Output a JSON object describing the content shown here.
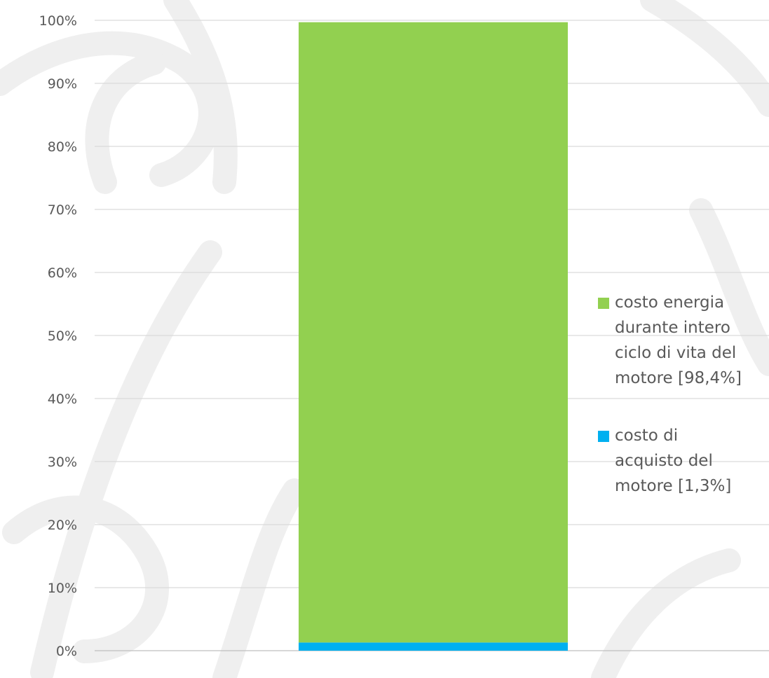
{
  "chart_data": {
    "type": "bar",
    "stacked": true,
    "percent_scale": true,
    "categories": [
      ""
    ],
    "series": [
      {
        "name": "costo di acquisto del motore [1,3%]",
        "values": [
          1.3
        ],
        "color": "#00B0F0"
      },
      {
        "name": "costo energia durante intero ciclo di vita del motore [98,4%]",
        "values": [
          98.4
        ],
        "color": "#92D050"
      }
    ],
    "ylim": [
      0,
      100
    ],
    "yticks": [
      "0%",
      "10%",
      "20%",
      "30%",
      "40%",
      "50%",
      "60%",
      "70%",
      "80%",
      "90%",
      "100%"
    ],
    "grid": true,
    "legend": {
      "position": "right",
      "entries": [
        {
          "lines": [
            "costo energia",
            "durante intero",
            "ciclo di vita del",
            "motore [98,4%]"
          ],
          "color": "#92D050"
        },
        {
          "lines": [
            "costo di",
            "acquisto del",
            "motore [1,3%]"
          ],
          "color": "#00B0F0"
        }
      ]
    },
    "colors": {
      "grid": "#D9D9D9",
      "axis": "#BFBFBF",
      "text": "#595959",
      "watermark": "#EFEFEF"
    }
  }
}
